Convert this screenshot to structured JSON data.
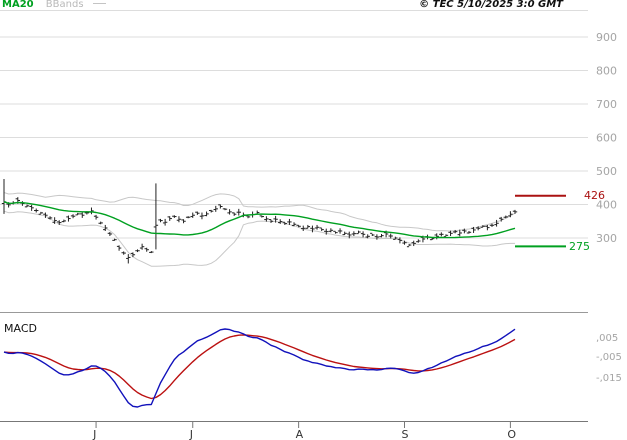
{
  "legend": {
    "ma20": "MA20",
    "bbands": "BBands"
  },
  "header": {
    "copyright": "© TEC 5/10/2025 3:0 GMT"
  },
  "chart_data": [
    {
      "type": "candlestick",
      "name": "price-panel",
      "title": "",
      "ylim": [
        180,
        930
      ],
      "yticks": [
        900,
        800,
        700,
        600,
        500,
        400,
        300
      ],
      "levels": {
        "resistance": 426,
        "support": 275
      },
      "colors": {
        "bars": "#222222",
        "ma20": "#00a020",
        "bbands": "#c8c8c8",
        "resistance": "#aa1111",
        "support": "#00a020",
        "grid": "#dddddd",
        "axis_text": "#a5a5a5"
      },
      "x_axis": {
        "labels": [
          "J",
          "J",
          "A",
          "S",
          "O"
        ],
        "tick_indices": [
          20,
          41,
          64,
          87,
          110
        ]
      },
      "closes": [
        408,
        399,
        405,
        412,
        403,
        396,
        390,
        382,
        375,
        368,
        360,
        352,
        346,
        351,
        358,
        365,
        372,
        368,
        375,
        381,
        362,
        345,
        330,
        312,
        295,
        270,
        255,
        242,
        250,
        262,
        274,
        265,
        258,
        338,
        352,
        347,
        358,
        364,
        356,
        350,
        362,
        368,
        374,
        366,
        372,
        380,
        387,
        394,
        386,
        378,
        371,
        377,
        369,
        363,
        370,
        376,
        364,
        357,
        350,
        356,
        349,
        343,
        348,
        341,
        335,
        329,
        334,
        327,
        332,
        325,
        319,
        323,
        316,
        321,
        314,
        309,
        313,
        318,
        311,
        305,
        309,
        303,
        307,
        312,
        306,
        300,
        293,
        286,
        279,
        284,
        291,
        297,
        303,
        298,
        305,
        311,
        308,
        314,
        319,
        315,
        321,
        317,
        324,
        329,
        335,
        331,
        338,
        344,
        356,
        363,
        371,
        378
      ],
      "bar_overrides": {
        "0": {
          "high": 476,
          "low": 372
        },
        "27": {
          "low": 224
        },
        "33": {
          "high": 463,
          "low": 266
        }
      }
    },
    {
      "type": "line",
      "name": "macd-panel",
      "title": "MACD",
      "yticks": [
        ",005",
        "-,005",
        "-,015"
      ],
      "series": [
        {
          "name": "macd",
          "color": "#1111bb",
          "derived": "EMA12(closes) - EMA26(closes)"
        },
        {
          "name": "signal",
          "color": "#bb1111",
          "derived": "EMA9(macd)"
        }
      ]
    }
  ]
}
